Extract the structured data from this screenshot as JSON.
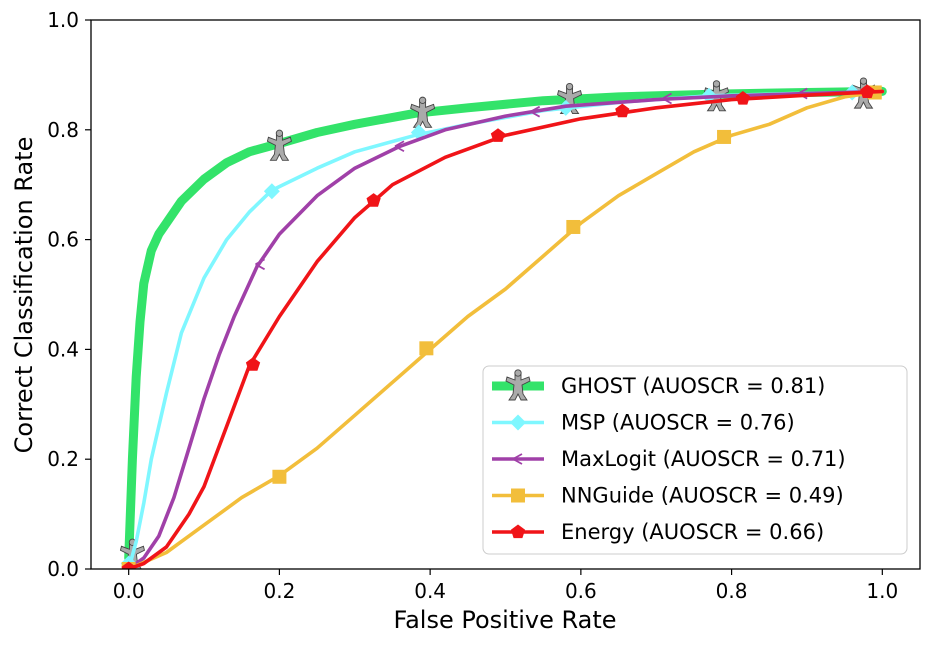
{
  "chart_data": {
    "type": "line",
    "xlabel": "False Positive Rate",
    "ylabel": "Correct Classification Rate",
    "xlim": [
      -0.05,
      1.05
    ],
    "ylim": [
      0.0,
      1.0
    ],
    "xticks": [
      "0.0",
      "0.2",
      "0.4",
      "0.6",
      "0.8",
      "1.0"
    ],
    "yticks": [
      "0.0",
      "0.2",
      "0.4",
      "0.6",
      "0.8",
      "1.0"
    ],
    "grid": false,
    "legend_position": "lower-right",
    "series": [
      {
        "name": "GHOST (AUOSCR = 0.81)",
        "color": "#33e36a",
        "marker": "person-icon",
        "marker_color": "#aaaaaa",
        "line_width": "thick",
        "x": [
          0.0,
          0.005,
          0.01,
          0.015,
          0.02,
          0.03,
          0.04,
          0.05,
          0.07,
          0.1,
          0.13,
          0.16,
          0.2,
          0.25,
          0.3,
          0.38,
          0.45,
          0.55,
          0.65,
          0.78,
          0.9,
          1.0
        ],
        "y": [
          0.02,
          0.2,
          0.35,
          0.45,
          0.52,
          0.58,
          0.61,
          0.63,
          0.67,
          0.71,
          0.74,
          0.76,
          0.775,
          0.795,
          0.81,
          0.83,
          0.84,
          0.853,
          0.86,
          0.865,
          0.868,
          0.87
        ],
        "marker_x": [
          0.005,
          0.2,
          0.39,
          0.585,
          0.78,
          0.975
        ],
        "marker_y": [
          0.025,
          0.77,
          0.83,
          0.855,
          0.86,
          0.865
        ]
      },
      {
        "name": "MSP (AUOSCR = 0.76)",
        "color": "#7ff7ff",
        "marker": "diamond-icon",
        "x": [
          0.0,
          0.01,
          0.02,
          0.03,
          0.05,
          0.07,
          0.1,
          0.13,
          0.16,
          0.19,
          0.25,
          0.3,
          0.38,
          0.45,
          0.55,
          0.65,
          0.77,
          0.88,
          0.96,
          1.0
        ],
        "y": [
          0.0,
          0.05,
          0.12,
          0.2,
          0.32,
          0.43,
          0.53,
          0.6,
          0.65,
          0.69,
          0.73,
          0.76,
          0.79,
          0.81,
          0.835,
          0.85,
          0.862,
          0.866,
          0.868,
          0.87
        ],
        "marker_x": [
          0.0,
          0.19,
          0.385,
          0.58,
          0.77,
          0.96
        ],
        "marker_y": [
          0.01,
          0.688,
          0.795,
          0.84,
          0.862,
          0.868
        ]
      },
      {
        "name": "MaxLogit (AUOSCR = 0.71)",
        "color": "#a040a8",
        "marker": "tri-left-icon",
        "x": [
          0.0,
          0.02,
          0.04,
          0.06,
          0.08,
          0.1,
          0.12,
          0.14,
          0.17,
          0.2,
          0.25,
          0.3,
          0.36,
          0.42,
          0.5,
          0.58,
          0.7,
          0.8,
          0.9,
          1.0
        ],
        "y": [
          0.0,
          0.02,
          0.06,
          0.13,
          0.22,
          0.31,
          0.39,
          0.46,
          0.55,
          0.61,
          0.68,
          0.73,
          0.77,
          0.8,
          0.825,
          0.843,
          0.855,
          0.862,
          0.866,
          0.87
        ],
        "marker_x": [
          0.0,
          0.175,
          0.36,
          0.54,
          0.715,
          0.895
        ],
        "marker_y": [
          0.0,
          0.555,
          0.77,
          0.833,
          0.857,
          0.866
        ]
      },
      {
        "name": "NNGuide (AUOSCR = 0.49)",
        "color": "#f2be3b",
        "marker": "square-icon",
        "x": [
          0.0,
          0.05,
          0.1,
          0.15,
          0.2,
          0.25,
          0.3,
          0.35,
          0.4,
          0.45,
          0.5,
          0.55,
          0.6,
          0.65,
          0.7,
          0.75,
          0.8,
          0.85,
          0.9,
          0.95,
          1.0
        ],
        "y": [
          0.0,
          0.03,
          0.08,
          0.13,
          0.17,
          0.22,
          0.28,
          0.34,
          0.4,
          0.46,
          0.51,
          0.57,
          0.63,
          0.68,
          0.72,
          0.76,
          0.79,
          0.81,
          0.84,
          0.86,
          0.87
        ],
        "marker_x": [
          0.0,
          0.2,
          0.395,
          0.59,
          0.79,
          0.99
        ],
        "marker_y": [
          0.0,
          0.168,
          0.402,
          0.623,
          0.787,
          0.868
        ]
      },
      {
        "name": "Energy (AUOSCR = 0.66)",
        "color": "#f01418",
        "marker": "pentagon-icon",
        "x": [
          0.0,
          0.02,
          0.05,
          0.08,
          0.1,
          0.13,
          0.16,
          0.2,
          0.25,
          0.3,
          0.35,
          0.42,
          0.5,
          0.6,
          0.7,
          0.8,
          0.9,
          1.0
        ],
        "y": [
          0.0,
          0.01,
          0.04,
          0.1,
          0.15,
          0.26,
          0.37,
          0.46,
          0.56,
          0.64,
          0.7,
          0.75,
          0.79,
          0.82,
          0.84,
          0.855,
          0.863,
          0.87
        ],
        "marker_x": [
          0.0,
          0.165,
          0.325,
          0.49,
          0.655,
          0.815,
          0.98
        ],
        "marker_y": [
          0.0,
          0.372,
          0.671,
          0.789,
          0.834,
          0.857,
          0.869
        ]
      }
    ]
  }
}
